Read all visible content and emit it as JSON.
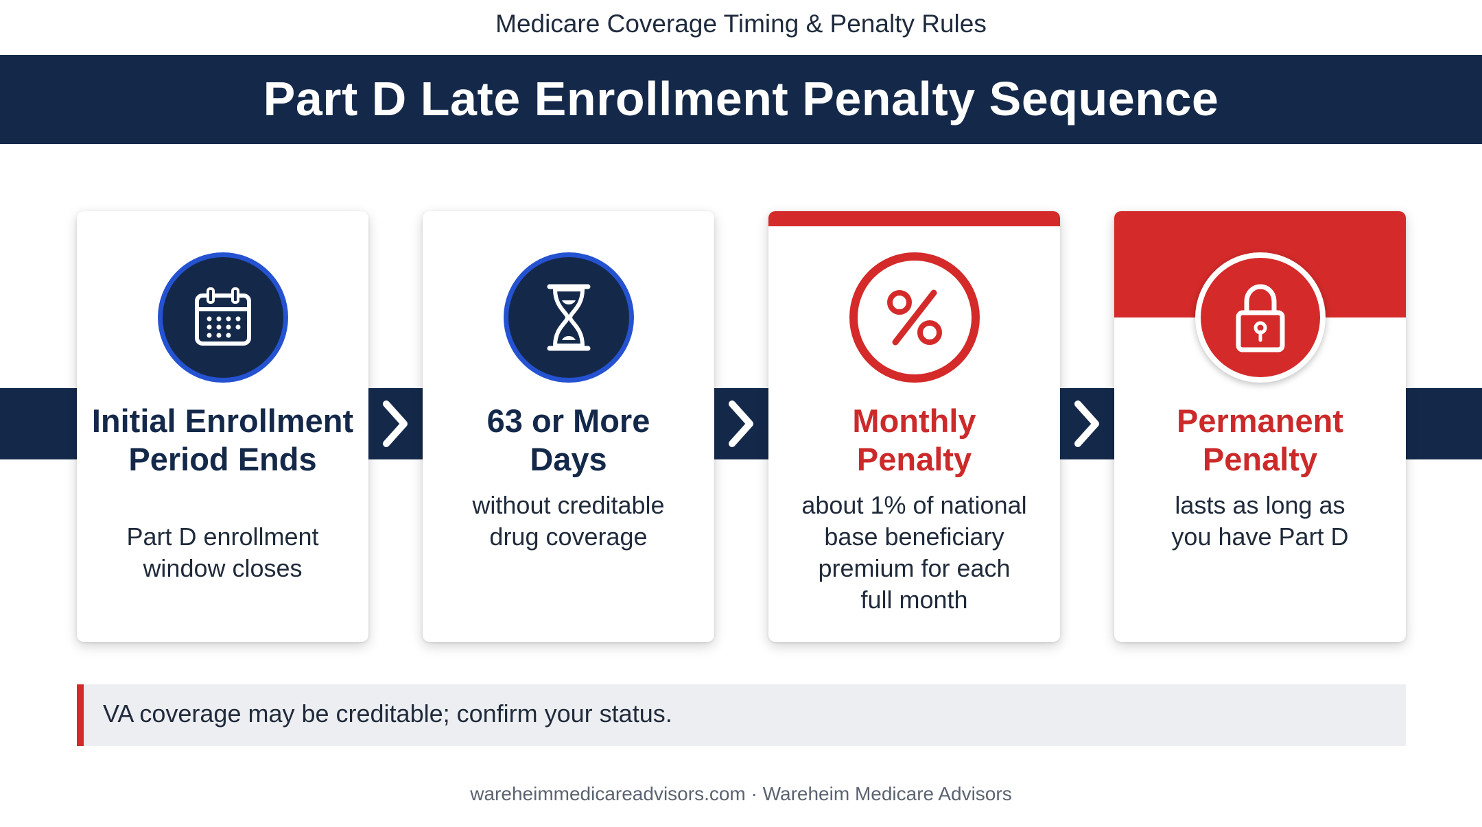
{
  "supertitle": "Medicare Coverage Timing & Penalty Rules",
  "title": "Part D Late Enrollment Penalty Sequence",
  "colors": {
    "navy": "#14294a",
    "blue_accent": "#2452d1",
    "red": "#d42a2a",
    "note_bg": "#eceef1"
  },
  "steps": [
    {
      "icon": "calendar-icon",
      "title_lines": [
        "Initial Enrollment",
        "Period Ends"
      ],
      "desc_lines": [
        "Part D enrollment",
        "window closes"
      ]
    },
    {
      "icon": "hourglass-icon",
      "title_lines": [
        "63 or More",
        "Days"
      ],
      "desc_lines": [
        "without creditable",
        "drug coverage"
      ]
    },
    {
      "icon": "percent-icon",
      "title_lines": [
        "Monthly",
        "Penalty"
      ],
      "desc_lines": [
        "about 1% of national",
        "base beneficiary",
        "premium for each",
        "full month"
      ]
    },
    {
      "icon": "lock-icon",
      "title_lines": [
        "Permanent",
        "Penalty"
      ],
      "desc_lines": [
        "lasts as long as",
        "you have Part D"
      ]
    }
  ],
  "note": "VA coverage may be creditable; confirm your status.",
  "footer": "wareheimmedicareadvisors.com · Wareheim Medicare Advisors"
}
